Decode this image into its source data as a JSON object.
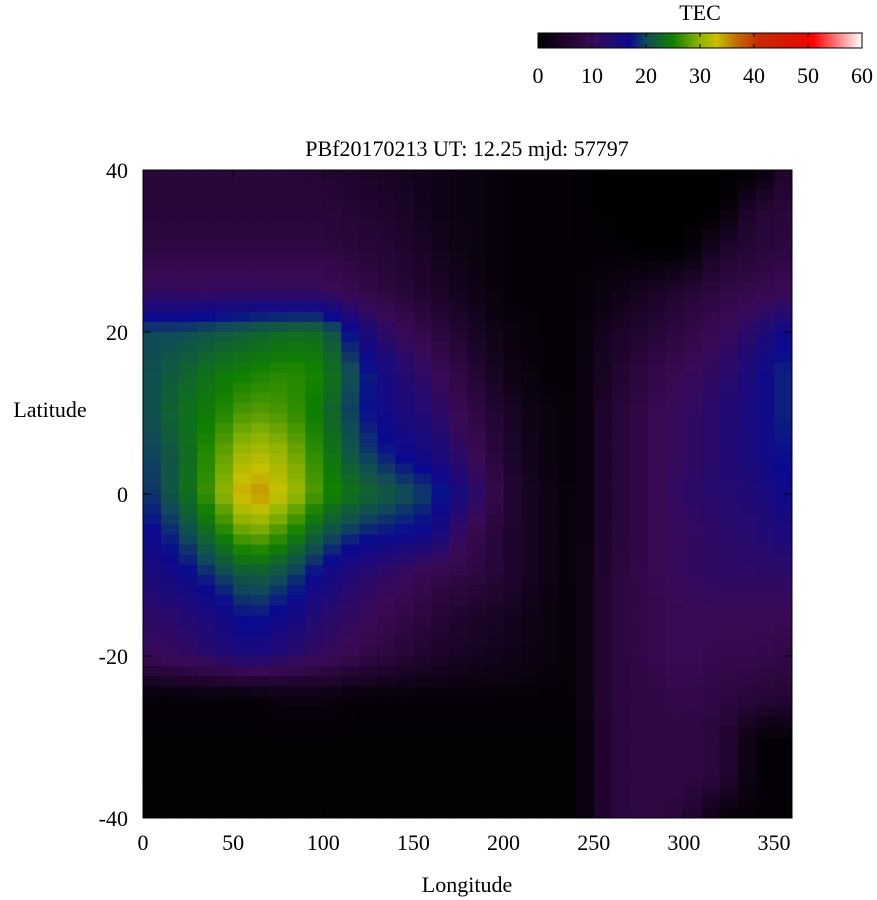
{
  "chart_data": {
    "type": "heatmap",
    "title": "PBf20170213  UT: 12.25  mjd: 57797",
    "xlabel": "Longitude",
    "ylabel": "Latitude",
    "xlim": [
      0,
      360
    ],
    "ylim": [
      -40,
      40
    ],
    "xticks": [
      "0",
      "50",
      "100",
      "150",
      "200",
      "250",
      "300",
      "350"
    ],
    "yticks": [
      "40",
      "20",
      "0",
      "-20",
      "-40"
    ],
    "colorbar": {
      "label": "TEC",
      "range": [
        0,
        60
      ],
      "ticks": [
        "0",
        "10",
        "20",
        "30",
        "40",
        "50",
        "60"
      ],
      "colors": [
        [
          0,
          "#000000"
        ],
        [
          10,
          "#3a0a55"
        ],
        [
          17,
          "#0a0a90"
        ],
        [
          20,
          "#104a58"
        ],
        [
          25,
          "#108000"
        ],
        [
          30,
          "#90b400"
        ],
        [
          33,
          "#c8c000"
        ],
        [
          37,
          "#c06800"
        ],
        [
          41,
          "#c82800"
        ],
        [
          48,
          "#e01000"
        ],
        [
          51,
          "#ff0000"
        ],
        [
          60,
          "#ffffff"
        ]
      ]
    },
    "longitudes": [
      0,
      20,
      40,
      60,
      80,
      100,
      120,
      140,
      160,
      180,
      200,
      220,
      240,
      260,
      280,
      300,
      320,
      340,
      360
    ],
    "latitudes": [
      40,
      35,
      30,
      25,
      20,
      15,
      10,
      5,
      0,
      -5,
      -10,
      -15,
      -20,
      -25,
      -30,
      -35,
      -40
    ],
    "values": [
      [
        7,
        7,
        7,
        7,
        7,
        6,
        5,
        4,
        3,
        2,
        1,
        1,
        1,
        0,
        0,
        0,
        0,
        0,
        7
      ],
      [
        7,
        7,
        7,
        7,
        7,
        7,
        6,
        5,
        3,
        2,
        1,
        1,
        1,
        0,
        0,
        0,
        0,
        6,
        7
      ],
      [
        8,
        8,
        8,
        8,
        8,
        8,
        7,
        6,
        4,
        2,
        1,
        1,
        1,
        1,
        0,
        0,
        5,
        7,
        8
      ],
      [
        11,
        11,
        11,
        11,
        11,
        11,
        9,
        7,
        5,
        3,
        1,
        1,
        1,
        2,
        4,
        6,
        8,
        9,
        10
      ],
      [
        20,
        20,
        21,
        22,
        23,
        23,
        15,
        11,
        8,
        5,
        2,
        1,
        1,
        4,
        6,
        8,
        10,
        13,
        17
      ],
      [
        20,
        22,
        24,
        25,
        26,
        25,
        19,
        14,
        11,
        7,
        3,
        1,
        1,
        5,
        8,
        10,
        12,
        15,
        19
      ],
      [
        20,
        23,
        25,
        28,
        27,
        24,
        18,
        15,
        13,
        9,
        5,
        2,
        1,
        6,
        9,
        11,
        13,
        15,
        19
      ],
      [
        19,
        22,
        27,
        32,
        30,
        25,
        20,
        17,
        15,
        11,
        6,
        2,
        1,
        6,
        9,
        11,
        13,
        15,
        18
      ],
      [
        18,
        22,
        28,
        36,
        32,
        26,
        23,
        21,
        19,
        14,
        7,
        3,
        1,
        6,
        9,
        12,
        13,
        14,
        17
      ],
      [
        16,
        19,
        24,
        29,
        26,
        21,
        18,
        17,
        16,
        10,
        6,
        3,
        1,
        6,
        9,
        11,
        12,
        13,
        15
      ],
      [
        14,
        16,
        19,
        22,
        20,
        16,
        13,
        11,
        9,
        8,
        6,
        3,
        1,
        7,
        9,
        11,
        12,
        12,
        12
      ],
      [
        12,
        13,
        15,
        18,
        16,
        13,
        11,
        9,
        7,
        5,
        4,
        2,
        1,
        7,
        9,
        10,
        10,
        10,
        10
      ],
      [
        10,
        11,
        13,
        15,
        13,
        11,
        9,
        7,
        5,
        4,
        3,
        2,
        1,
        7,
        9,
        10,
        9,
        9,
        8
      ],
      [
        1,
        1,
        1,
        1,
        2,
        2,
        1,
        1,
        1,
        1,
        1,
        1,
        1,
        7,
        8,
        9,
        8,
        7,
        6
      ],
      [
        0.5,
        0.5,
        0.5,
        0.5,
        0.5,
        0.5,
        0.5,
        0.5,
        0.5,
        0.5,
        0.5,
        0.5,
        0.5,
        7,
        8,
        8,
        7,
        1,
        1
      ],
      [
        0.5,
        0.5,
        0.5,
        0.5,
        0.5,
        0.5,
        0.5,
        0.5,
        0.5,
        0.5,
        0.5,
        0.5,
        0.5,
        7,
        8,
        8,
        7,
        1,
        1
      ],
      [
        0.5,
        0.5,
        0.5,
        0.5,
        0.5,
        0.5,
        0.5,
        0.5,
        0.5,
        0.5,
        0.5,
        0.5,
        0.5,
        7,
        8,
        7,
        1,
        1,
        1
      ]
    ]
  }
}
